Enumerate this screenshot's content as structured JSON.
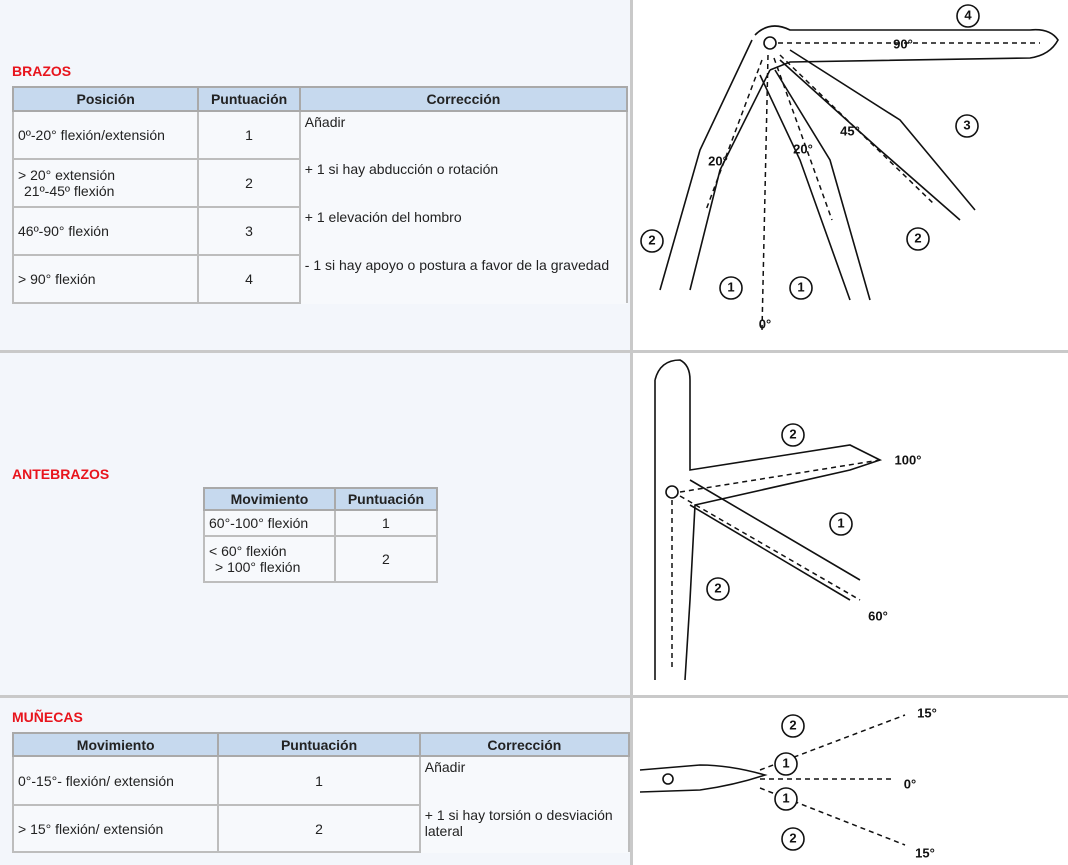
{
  "brazos": {
    "title": "BRAZOS",
    "table": {
      "header": [
        "Posición",
        "Puntuación",
        "Corrección"
      ],
      "rows": [
        [
          [
            "0º-20° flexión/extensión"
          ],
          "1",
          "Añadir"
        ],
        [
          [
            "> 20° extensión",
            "21º-45º flexión"
          ],
          "2",
          "+ 1 si hay abducción o rotación"
        ],
        [
          [
            "46º-90° flexión"
          ],
          "3",
          "+ 1 elevación del hombro"
        ],
        [
          [
            "> 90° flexión"
          ],
          "4",
          "- 1 si hay apoyo o postura a favor de la gravedad"
        ]
      ]
    },
    "figure_labels": [
      "4",
      "90°",
      "3",
      "45°",
      "20°",
      "20°",
      "2",
      "2",
      "1",
      "1",
      "0°"
    ]
  },
  "antebrazos": {
    "title": "ANTEBRAZOS",
    "table": {
      "header": [
        "Movimiento",
        "Puntuación"
      ],
      "rows": [
        [
          [
            "60°-100° flexión"
          ],
          "1"
        ],
        [
          [
            "< 60° flexión",
            "> 100° flexión"
          ],
          "2"
        ]
      ]
    },
    "figure_labels": [
      "2",
      "100°",
      "1",
      "2",
      "60°"
    ]
  },
  "munecas": {
    "title": "MUÑECAS",
    "table": {
      "header": [
        "Movimiento",
        "Puntuación",
        "Corrección"
      ],
      "rows": [
        [
          [
            "0°-15°- flexión/ extensión"
          ],
          "1",
          "Añadir"
        ],
        [
          [
            "> 15° flexión/ extensión"
          ],
          "2",
          "+ 1 si hay torsión o desviación lateral"
        ]
      ]
    },
    "figure_labels": [
      "15°",
      "2",
      "1",
      "0°",
      "1",
      "2",
      "15°"
    ]
  }
}
